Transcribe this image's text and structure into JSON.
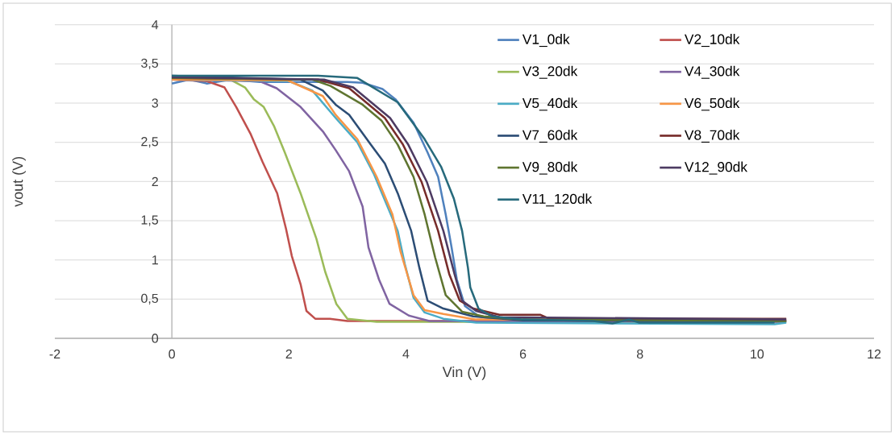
{
  "chart_data": {
    "type": "line",
    "xlabel": "Vin (V)",
    "ylabel": "vout (V)",
    "xlim": [
      -2,
      12
    ],
    "ylim": [
      0,
      4
    ],
    "xticks": [
      -2,
      0,
      2,
      4,
      6,
      8,
      10,
      12
    ],
    "yticks": [
      0,
      {
        "value": 0.5,
        "label": "0,5"
      },
      1,
      {
        "value": 1.5,
        "label": "1,5"
      },
      2,
      {
        "value": 2.5,
        "label": "2,5"
      },
      3,
      {
        "value": 3.5,
        "label": "3,5"
      },
      4
    ],
    "grid": "y",
    "legend": "top right",
    "marker": "none",
    "line_style": "solid",
    "series": [
      {
        "name": "V1_0dk",
        "color": "#4f81bd",
        "x": [
          0,
          0.3,
          0.6,
          1.0,
          1.5,
          2.0,
          2.5,
          3.0,
          3.26,
          3.6,
          3.82,
          4.13,
          4.37,
          4.55,
          4.68,
          4.78,
          4.87,
          5.01,
          5.25,
          5.6,
          7,
          9,
          10.5
        ],
        "values": [
          3.25,
          3.3,
          3.25,
          3.3,
          3.27,
          3.27,
          3.27,
          3.27,
          3.26,
          3.18,
          3.05,
          2.75,
          2.37,
          2.06,
          1.58,
          1.16,
          0.75,
          0.41,
          0.28,
          0.23,
          0.22,
          0.22,
          0.22
        ]
      },
      {
        "name": "V2_10dk",
        "color": "#c0504d",
        "x": [
          0,
          0.6,
          0.9,
          1.1,
          1.35,
          1.55,
          1.8,
          1.95,
          2.05,
          2.2,
          2.3,
          2.45,
          2.7,
          3.0,
          4.0,
          10.5
        ],
        "values": [
          3.3,
          3.28,
          3.2,
          2.95,
          2.6,
          2.25,
          1.85,
          1.4,
          1.05,
          0.69,
          0.35,
          0.25,
          0.25,
          0.22,
          0.22,
          0.22
        ]
      },
      {
        "name": "V3_20dk",
        "color": "#9bbb59",
        "x": [
          0,
          1.0,
          1.25,
          1.4,
          1.57,
          1.75,
          1.93,
          2.2,
          2.47,
          2.62,
          2.81,
          3.0,
          3.5,
          10.5
        ],
        "values": [
          3.3,
          3.3,
          3.2,
          3.05,
          2.95,
          2.7,
          2.37,
          1.85,
          1.27,
          0.85,
          0.44,
          0.25,
          0.21,
          0.21
        ]
      },
      {
        "name": "V4_30dk",
        "color": "#8064a2",
        "x": [
          0,
          1.5,
          1.79,
          2.2,
          2.58,
          2.8,
          3.03,
          3.26,
          3.36,
          3.54,
          3.72,
          4.05,
          4.4,
          10.5
        ],
        "values": [
          3.3,
          3.28,
          3.19,
          2.95,
          2.64,
          2.4,
          2.13,
          1.68,
          1.16,
          0.75,
          0.44,
          0.29,
          0.22,
          0.21
        ]
      },
      {
        "name": "V5_40dk",
        "color": "#4bacc6",
        "x": [
          0,
          2.0,
          2.4,
          2.8,
          3.17,
          3.45,
          3.86,
          3.98,
          4.13,
          4.32,
          4.64,
          5.2,
          10.3,
          10.5
        ],
        "values": [
          3.3,
          3.28,
          3.16,
          2.81,
          2.5,
          2.1,
          1.37,
          0.95,
          0.52,
          0.33,
          0.25,
          0.2,
          0.18,
          0.2
        ]
      },
      {
        "name": "V6_50dk",
        "color": "#f79646",
        "x": [
          0,
          1.98,
          2.58,
          2.8,
          3.17,
          3.5,
          3.77,
          3.91,
          4.13,
          4.32,
          4.64,
          5.2,
          10.5
        ],
        "values": [
          3.3,
          3.29,
          3.09,
          2.85,
          2.54,
          2.06,
          1.58,
          1.1,
          0.55,
          0.36,
          0.31,
          0.24,
          0.23
        ]
      },
      {
        "name": "V7_60dk",
        "color": "#2c4d75",
        "x": [
          0,
          2.2,
          2.58,
          2.8,
          3.03,
          3.4,
          3.64,
          3.86,
          4.09,
          4.23,
          4.37,
          4.64,
          5.15,
          6,
          10.5
        ],
        "values": [
          3.35,
          3.3,
          3.16,
          2.98,
          2.85,
          2.47,
          2.23,
          1.85,
          1.37,
          0.9,
          0.48,
          0.38,
          0.28,
          0.23,
          0.22
        ]
      },
      {
        "name": "V8_70dk",
        "color": "#772c2a",
        "x": [
          0,
          2.5,
          3.03,
          3.64,
          3.95,
          4.27,
          4.55,
          4.74,
          4.92,
          5.15,
          5.6,
          6.3,
          6.45,
          10.5
        ],
        "values": [
          3.32,
          3.3,
          3.19,
          2.81,
          2.47,
          1.99,
          1.37,
          0.82,
          0.48,
          0.38,
          0.3,
          0.3,
          0.25,
          0.25
        ]
      },
      {
        "name": "V9_80dk",
        "color": "#5f7530",
        "x": [
          0,
          2.4,
          2.71,
          3.26,
          3.58,
          3.86,
          4.13,
          4.32,
          4.5,
          4.68,
          4.96,
          5.33,
          6,
          10.5
        ],
        "values": [
          3.32,
          3.3,
          3.22,
          2.98,
          2.78,
          2.47,
          2.06,
          1.58,
          1.03,
          0.55,
          0.34,
          0.28,
          0.24,
          0.22
        ]
      },
      {
        "name": "V12_90dk",
        "color": "#4d3b62",
        "x": [
          0,
          2.6,
          3.1,
          3.73,
          4.04,
          4.36,
          4.64,
          4.83,
          4.96,
          5.2,
          5.6,
          10.5
        ],
        "values": [
          3.33,
          3.3,
          3.2,
          2.81,
          2.47,
          1.99,
          1.37,
          0.82,
          0.48,
          0.35,
          0.27,
          0.24
        ]
      },
      {
        "name": "V11_120dk",
        "color": "#276a7c",
        "x": [
          0,
          1.0,
          2.5,
          3.17,
          3.86,
          4.32,
          4.6,
          4.82,
          4.96,
          5.06,
          5.1,
          5.24,
          5.47,
          6,
          7.2,
          7.53,
          7.81,
          7.99,
          10.3
        ],
        "values": [
          3.35,
          3.35,
          3.35,
          3.32,
          3.01,
          2.54,
          2.19,
          1.78,
          1.37,
          0.9,
          0.65,
          0.38,
          0.28,
          0.24,
          0.22,
          0.19,
          0.24,
          0.2,
          0.2
        ]
      }
    ]
  }
}
